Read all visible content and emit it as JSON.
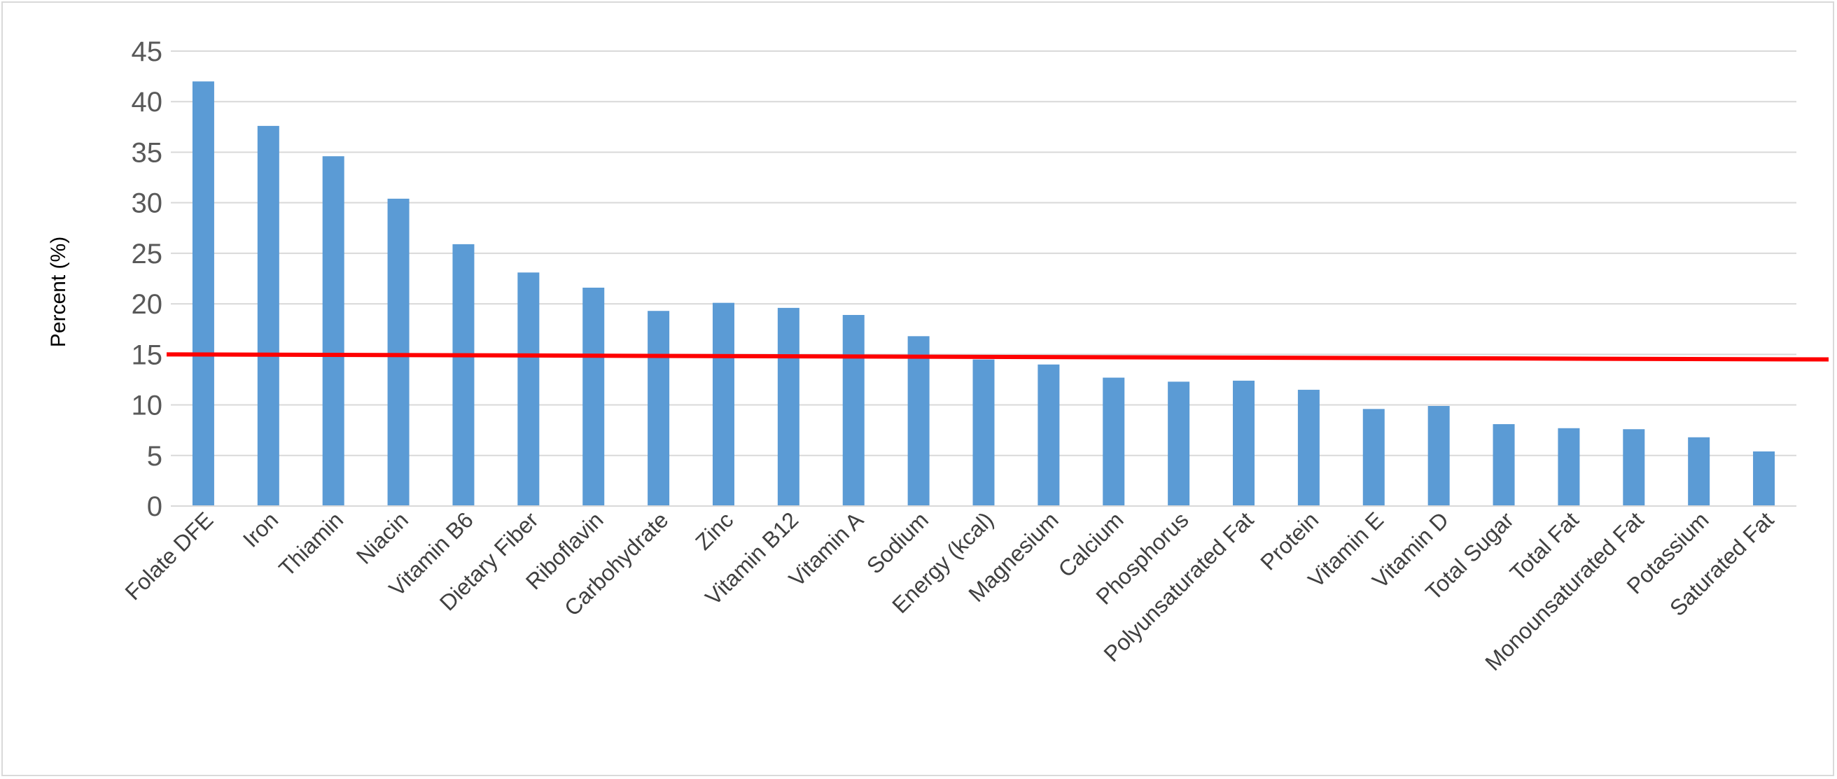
{
  "chart_data": {
    "type": "bar",
    "title": "",
    "xlabel": "",
    "ylabel": "Percent (%)",
    "ylim": [
      0,
      45
    ],
    "yticks": [
      0,
      5,
      10,
      15,
      20,
      25,
      30,
      35,
      40,
      45
    ],
    "grid": true,
    "legend": "none",
    "categories": [
      "Folate DFE",
      "Iron",
      "Thiamin",
      "Niacin",
      "Vitamin B6",
      "Dietary Fiber",
      "Riboflavin",
      "Carbohydrate",
      "Zinc",
      "Vitamin B12",
      "Vitamin A",
      "Sodium",
      "Energy (kcal)",
      "Magnesium",
      "Calcium",
      "Phosphorus",
      "Polyunsaturated Fat",
      "Protein",
      "Vitamin E",
      "Vitamin D",
      "Total Sugar",
      "Total Fat",
      "Monounsaturated Fat",
      "Potassium",
      "Saturated Fat"
    ],
    "values": [
      42.0,
      37.6,
      34.6,
      30.4,
      25.9,
      23.1,
      21.6,
      19.3,
      20.1,
      19.6,
      18.9,
      16.8,
      14.5,
      14.0,
      12.7,
      12.3,
      12.4,
      11.5,
      9.6,
      9.9,
      8.1,
      7.7,
      7.6,
      6.8,
      5.4
    ],
    "reference_line": {
      "start": 15.0,
      "end": 14.5,
      "color": "#ff0000"
    },
    "bar_color": "#5b9bd5",
    "grid_color": "#d9d9d9"
  }
}
